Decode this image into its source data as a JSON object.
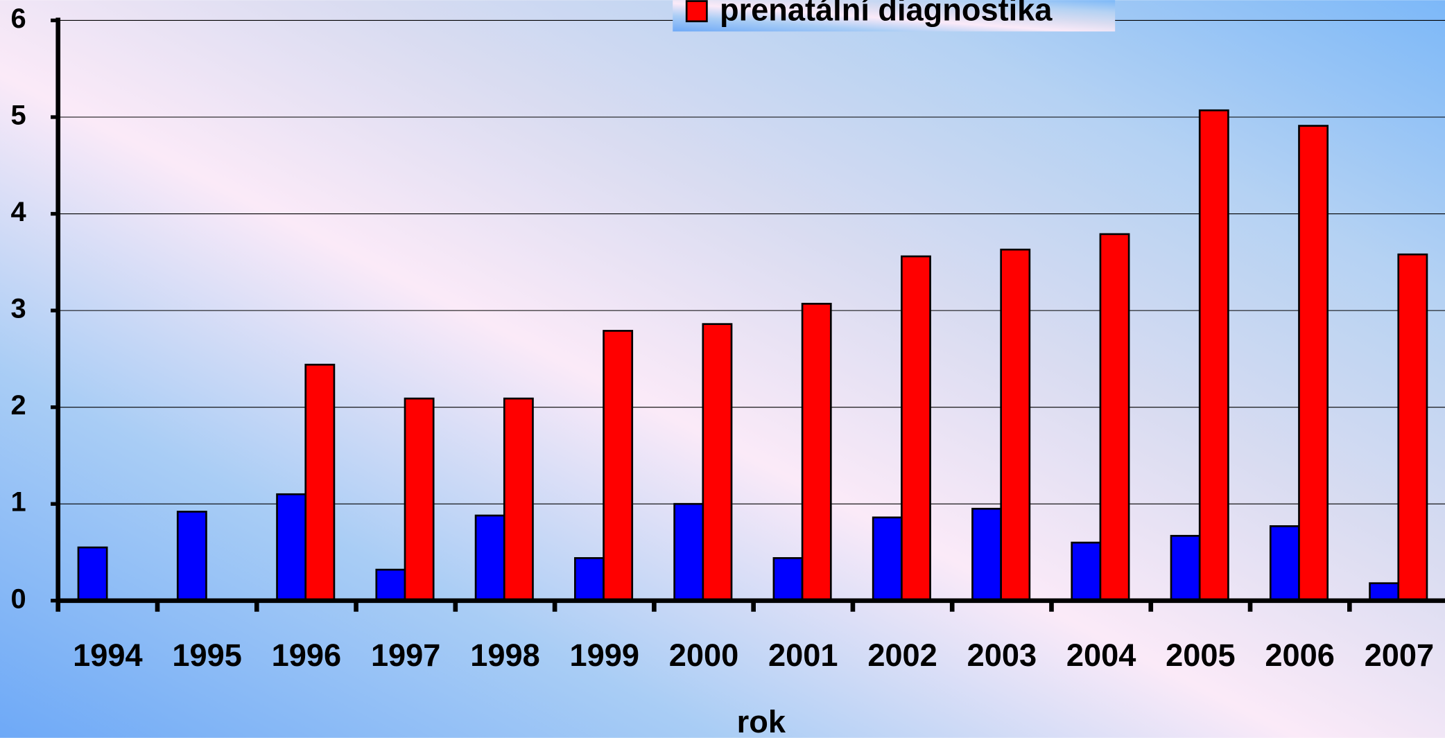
{
  "chart_data": {
    "type": "bar",
    "x_label": "rok",
    "categories": [
      "1994",
      "1995",
      "1996",
      "1997",
      "1998",
      "1999",
      "2000",
      "2001",
      "2002",
      "2003",
      "2004",
      "2005",
      "2006",
      "2007"
    ],
    "series": [
      {
        "color": "#0000ff",
        "values": [
          0.55,
          0.92,
          1.1,
          0.32,
          0.88,
          0.44,
          1.0,
          0.44,
          0.86,
          0.95,
          0.6,
          0.67,
          0.77,
          0.18
        ]
      },
      {
        "name": "prenatální diagnostika",
        "color": "#ff0000",
        "values": [
          null,
          null,
          2.44,
          2.09,
          2.09,
          2.79,
          2.86,
          3.07,
          3.56,
          3.63,
          3.79,
          5.07,
          4.91,
          3.58
        ]
      }
    ],
    "ylim": [
      0,
      6
    ],
    "yticks": [
      0,
      1,
      2,
      3,
      4,
      5,
      6
    ],
    "grid": true,
    "legend": "top"
  }
}
